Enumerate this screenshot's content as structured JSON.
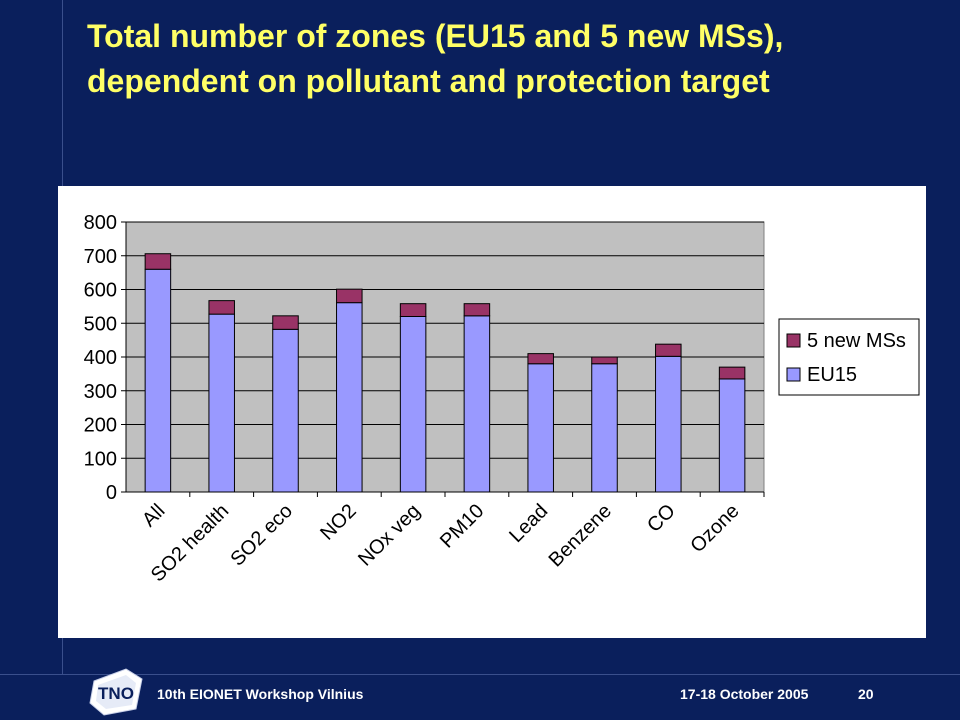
{
  "slide": {
    "title": "Total number of zones (EU15 and 5 new MSs), dependent on pollutant and protection target",
    "footer_event": "10th EIONET Workshop Vilnius",
    "footer_date": "17-18 October 2005",
    "page_number": "20",
    "logo_text": "TNO",
    "colors": {
      "background": "#0a1f5c",
      "title": "#ffff66",
      "eu15": "#9999ff",
      "new_ms": "#993366",
      "plot_bg": "#c0c0c0"
    }
  },
  "chart_data": {
    "type": "bar",
    "stacked": true,
    "categories": [
      "All",
      "SO2 health",
      "SO2 eco",
      "NO2",
      "NOx veg",
      "PM10",
      "Lead",
      "Benzene",
      "CO",
      "Ozone"
    ],
    "series": [
      {
        "name": "EU15",
        "color": "#9999ff",
        "values": [
          660,
          527,
          482,
          561,
          520,
          522,
          380,
          380,
          402,
          335
        ]
      },
      {
        "name": "5 new MSs",
        "color": "#993366",
        "values": [
          46,
          40,
          40,
          40,
          38,
          36,
          30,
          20,
          36,
          35
        ]
      }
    ],
    "legend_order": [
      "5 new MSs",
      "EU15"
    ],
    "legend_position": "right",
    "yticks": [
      0,
      100,
      200,
      300,
      400,
      500,
      600,
      700,
      800
    ],
    "ylim": [
      0,
      800
    ],
    "grid": true
  }
}
